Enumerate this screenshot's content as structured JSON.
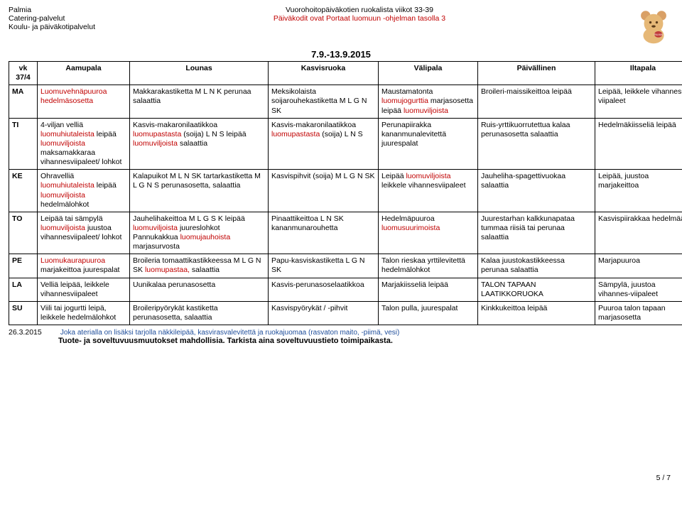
{
  "header": {
    "org_line1": "Palmia",
    "org_line2": "Catering-palvelut",
    "org_line3": "Koulu- ja päiväkotipalvelut",
    "title": "Vuorohoitopäiväkotien ruokalista viikot 33-39",
    "subtitle_red": "Päiväkodit ovat Portaat luomuun -ohjelman tasolla 3",
    "date_range": "7.9.-13.9.2015"
  },
  "columns": {
    "vk": "vk 37/4",
    "aamupala": "Aamupala",
    "lounas": "Lounas",
    "kasvis": "Kasvisruoka",
    "valipala": "Välipala",
    "paivallinen": "Päivällinen",
    "iltapala": "Iltapala"
  },
  "rows": [
    {
      "day": "MA",
      "aamupala": "Luomuvehnäpuuroa hedelmäsosetta",
      "aamupala_red": true,
      "lounas": "Makkarakastiketta M L N K perunaa salaattia",
      "kasvis": "Meksikolaista soijarouhekastiketta M L G N SK",
      "valipala_parts": [
        {
          "t": "Maustamatonta ",
          "r": false
        },
        {
          "t": "luomujogurttia ",
          "r": true
        },
        {
          "t": "marjasosetta leipää ",
          "r": false
        },
        {
          "t": "luomuviljoista",
          "r": true
        }
      ],
      "paiv": "Broileri-maissikeittoa leipää",
      "ilta": "Leipää, leikkele vihannes-viipaleet"
    },
    {
      "day": "TI",
      "aamupala_parts": [
        {
          "t": "4-viljan velliä ",
          "r": false
        },
        {
          "t": "luomuhiutaleista ",
          "r": true
        },
        {
          "t": "leipää ",
          "r": false
        },
        {
          "t": "luomuviljoista ",
          "r": true
        },
        {
          "t": "maksamakkaraa vihannesviipaleet/ lohkot",
          "r": false
        }
      ],
      "lounas_parts": [
        {
          "t": "Kasvis-makaronilaatikkoa ",
          "r": false
        },
        {
          "t": "luomupastasta ",
          "r": true
        },
        {
          "t": "(soija) L N S leipää ",
          "r": false
        },
        {
          "t": "luomuviljoista ",
          "r": true
        },
        {
          "t": "salaattia",
          "r": false
        }
      ],
      "kasvis_parts": [
        {
          "t": "Kasvis-makaronilaatikkoa ",
          "r": false
        },
        {
          "t": "luomupastasta ",
          "r": true
        },
        {
          "t": "(soija) L N S",
          "r": false
        }
      ],
      "valipala": "Perunapiirakka kananmunalevitettä juurespalat",
      "paiv": "Ruis-yrttikuorrutettua kalaa perunasosetta salaattia",
      "ilta": "Hedelmäkiisseliä leipää"
    },
    {
      "day": "KE",
      "aamupala_parts": [
        {
          "t": "Ohravelliä ",
          "r": false
        },
        {
          "t": "luomuhiutaleista ",
          "r": true
        },
        {
          "t": "leipää ",
          "r": false
        },
        {
          "t": "luomuviljoista ",
          "r": true
        },
        {
          "t": "hedelmälohkot",
          "r": false
        }
      ],
      "lounas": "Kalapuikot M L N SK tartarkastiketta M L G N S perunasosetta, salaattia",
      "kasvis": "Kasvispihvit (soija) M L G N SK",
      "valipala_parts": [
        {
          "t": "Leipää ",
          "r": false
        },
        {
          "t": "luomuviljoista ",
          "r": true
        },
        {
          "t": "leikkele vihannesviipaleet",
          "r": false
        }
      ],
      "paiv": "Jauheliha-spagettivuokaa salaattia",
      "ilta": "Leipää, juustoa marjakeittoa"
    },
    {
      "day": "TO",
      "aamupala_parts": [
        {
          "t": "Leipää tai sämpylä ",
          "r": false
        },
        {
          "t": "luomuviljoista ",
          "r": true
        },
        {
          "t": "juustoa vihannesviipaleet/ lohkot",
          "r": false
        }
      ],
      "lounas_parts": [
        {
          "t": "Jauhelihakeittoa M L G S K leipää ",
          "r": false
        },
        {
          "t": "luomuviljoista ",
          "r": true
        },
        {
          "t": "juureslohkot Pannukakkua ",
          "r": false
        },
        {
          "t": "luomujauhoista ",
          "r": true
        },
        {
          "t": "marjasurvosta",
          "r": false
        }
      ],
      "kasvis": "Pinaattikeittoa L N SK kananmunarouhetta",
      "valipala_parts": [
        {
          "t": "Hedelmäpuuroa ",
          "r": false
        },
        {
          "t": "luomusuurimoista",
          "r": true
        }
      ],
      "paiv": "Juurestarhan kalkkunapataa tummaa riisiä tai perunaa salaattia",
      "ilta": "Kasvispiirakkaa hedelmää"
    },
    {
      "day": "PE",
      "aamupala_parts": [
        {
          "t": "Luomukaurapuuroa ",
          "r": true
        },
        {
          "t": "marjakeittoa juurespalat",
          "r": false
        }
      ],
      "lounas_parts": [
        {
          "t": "Broileria tomaattikastikkeessa M L G N SK ",
          "r": false
        },
        {
          "t": "luomupastaa, ",
          "r": true
        },
        {
          "t": "salaattia",
          "r": false
        }
      ],
      "kasvis": "Papu-kasviskastiketta L G N SK",
      "valipala": "Talon rieskaa yrttilevitettä hedelmälohkot",
      "paiv": "Kalaa juustokastikkeessa perunaa salaattia",
      "ilta": "Marjapuuroa"
    },
    {
      "day": "LA",
      "aamupala": "Velliä leipää, leikkele vihannesviipaleet",
      "lounas": "Uunikalaa perunasosetta",
      "kasvis": "Kasvis-perunasoselaatikkoa",
      "valipala": "Marjakiisseliä leipää",
      "paiv": "TALON TAPAAN LAATIKKORUOKA",
      "ilta": "Sämpylä, juustoa vihannes-viipaleet"
    },
    {
      "day": "SU",
      "aamupala": "Viili tai jogurtti leipä, leikkele hedelmälohkot",
      "lounas": "Broileripyörykät kastiketta perunasosetta, salaattia",
      "kasvis": "Kasvispyörykät / -pihvit",
      "valipala": "Talon pulla, juurespalat",
      "paiv": "Kinkkukeittoa leipää",
      "ilta": "Puuroa talon tapaan marjasosetta"
    }
  ],
  "footer": {
    "page": "5 / 7",
    "date": "26.3.2015",
    "note_blue": "Joka aterialla on lisäksi tarjolla näkkileipää, kasvirasvalevitettä ja ruokajuomaa (rasvaton maito, -piimä, vesi)",
    "note_bold": "Tuote- ja soveltuvuusmuutokset mahdollisia. Tarkista aina soveltuvuustieto toimipaikasta."
  },
  "colors": {
    "red": "#c00000",
    "blue": "#1f4e9b",
    "border": "#000000"
  }
}
